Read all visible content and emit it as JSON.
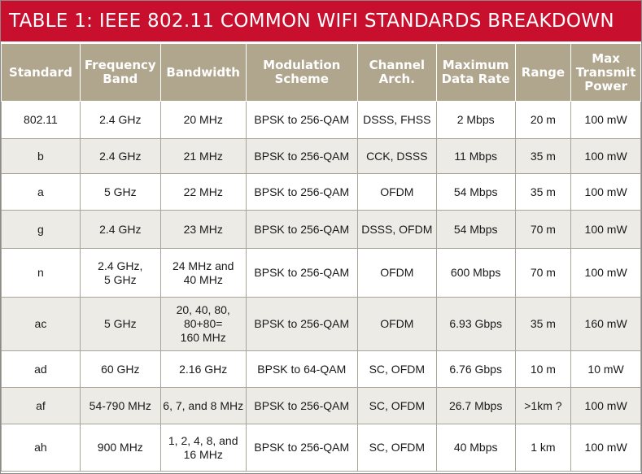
{
  "title": "TABLE 1: IEEE 802.11 COMMON WIFI STANDARDS BREAKDOWN",
  "headers": [
    [
      "Standard"
    ],
    [
      "Frequency",
      "Band"
    ],
    [
      "Bandwidth"
    ],
    [
      "Modulation",
      "Scheme"
    ],
    [
      "Channel",
      "Arch."
    ],
    [
      "Maximum",
      "Data Rate"
    ],
    [
      "Range"
    ],
    [
      "Max",
      "Transmit",
      "Power"
    ]
  ],
  "rows": [
    [
      [
        "802.11"
      ],
      [
        "2.4 GHz"
      ],
      [
        "20 MHz"
      ],
      [
        "BPSK to 256-QAM"
      ],
      [
        "DSSS, FHSS"
      ],
      [
        "2 Mbps"
      ],
      [
        "20 m"
      ],
      [
        "100 mW"
      ]
    ],
    [
      [
        "b"
      ],
      [
        "2.4 GHz"
      ],
      [
        "21 MHz"
      ],
      [
        "BPSK to 256-QAM"
      ],
      [
        "CCK, DSSS"
      ],
      [
        "11 Mbps"
      ],
      [
        "35 m"
      ],
      [
        "100 mW"
      ]
    ],
    [
      [
        "a"
      ],
      [
        "5 GHz"
      ],
      [
        "22 MHz"
      ],
      [
        "BPSK to 256-QAM"
      ],
      [
        "OFDM"
      ],
      [
        "54 Mbps"
      ],
      [
        "35 m"
      ],
      [
        "100 mW"
      ]
    ],
    [
      [
        "g"
      ],
      [
        "2.4 GHz"
      ],
      [
        "23 MHz"
      ],
      [
        "BPSK to 256-QAM"
      ],
      [
        "DSSS, OFDM"
      ],
      [
        "54 Mbps"
      ],
      [
        "70 m"
      ],
      [
        "100 mW"
      ]
    ],
    [
      [
        "n"
      ],
      [
        "2.4 GHz,",
        "5 GHz"
      ],
      [
        "24 MHz and",
        "40 MHz"
      ],
      [
        "BPSK to 256-QAM"
      ],
      [
        "OFDM"
      ],
      [
        "600 Mbps"
      ],
      [
        "70 m"
      ],
      [
        "100 mW"
      ]
    ],
    [
      [
        "ac"
      ],
      [
        "5 GHz"
      ],
      [
        "20, 40, 80,",
        "80+80=",
        "160 MHz"
      ],
      [
        "BPSK to 256-QAM"
      ],
      [
        "OFDM"
      ],
      [
        "6.93 Gbps"
      ],
      [
        "35 m"
      ],
      [
        "160 mW"
      ]
    ],
    [
      [
        "ad"
      ],
      [
        "60 GHz"
      ],
      [
        "2.16 GHz"
      ],
      [
        "BPSK to 64-QAM"
      ],
      [
        "SC, OFDM"
      ],
      [
        "6.76 Gbps"
      ],
      [
        "10 m"
      ],
      [
        "10 mW"
      ]
    ],
    [
      [
        "af"
      ],
      [
        "54-790 MHz"
      ],
      [
        "6, 7, and 8 MHz"
      ],
      [
        "BPSK to 256-QAM"
      ],
      [
        "SC, OFDM"
      ],
      [
        "26.7 Mbps"
      ],
      [
        ">1km ?"
      ],
      [
        "100 mW"
      ]
    ],
    [
      [
        "ah"
      ],
      [
        "900 MHz"
      ],
      [
        "1, 2, 4, 8, and",
        "16 MHz"
      ],
      [
        "BPSK to 256-QAM"
      ],
      [
        "SC, OFDM"
      ],
      [
        "40 Mbps"
      ],
      [
        "1 km"
      ],
      [
        "100 mW"
      ]
    ]
  ]
}
